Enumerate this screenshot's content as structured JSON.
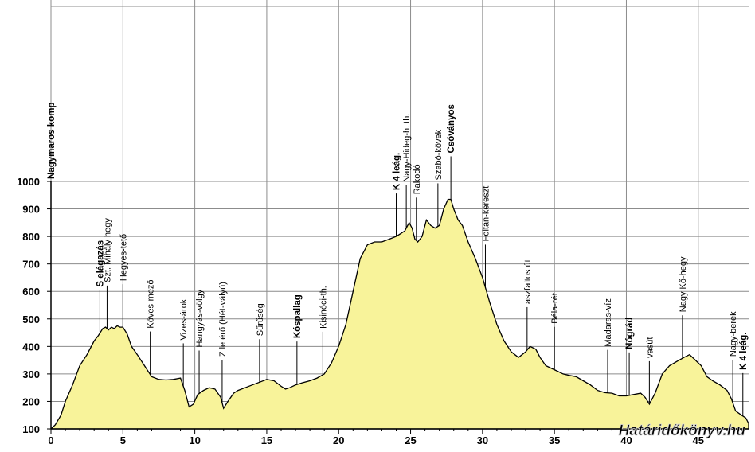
{
  "chart_data": {
    "type": "area",
    "title": "",
    "xlabel": "",
    "ylabel": "",
    "xlim": [
      0,
      48.5
    ],
    "ylim": [
      100,
      1000
    ],
    "x_ticks": [
      0,
      5,
      10,
      15,
      20,
      25,
      30,
      35,
      40,
      45
    ],
    "y_ticks": [
      100,
      200,
      300,
      400,
      500,
      600,
      700,
      800,
      900,
      1000
    ],
    "grid": true,
    "fill_color": "#f8f39a",
    "line_color": "#000000",
    "grid_color": "#8c8c8c",
    "series": [
      {
        "x": [
          0,
          0.3,
          0.7,
          1.0,
          1.5,
          2.0,
          2.5,
          3.0,
          3.3,
          3.6,
          3.8,
          4.0,
          4.2,
          4.4,
          4.6,
          4.8,
          5.0,
          5.3,
          5.6,
          6.0,
          6.5,
          7.0,
          7.5,
          8.0,
          8.5,
          9.0,
          9.3,
          9.6,
          9.9,
          10.2,
          10.6,
          11.0,
          11.4,
          11.8,
          12.0,
          12.3,
          12.7,
          13.0,
          13.5,
          14.0,
          14.5,
          15.0,
          15.5,
          16.0,
          16.3,
          16.6,
          17.0,
          17.5,
          18.0,
          18.5,
          19.0,
          19.5,
          20.0,
          20.5,
          21.0,
          21.5,
          22.0,
          22.5,
          23.0,
          23.5,
          24.0,
          24.3,
          24.6,
          24.9,
          25.1,
          25.3,
          25.5,
          25.8,
          26.1,
          26.4,
          26.7,
          27.0,
          27.3,
          27.6,
          27.8,
          28.0,
          28.3,
          28.6,
          29.0,
          29.5,
          30.0,
          30.5,
          31.0,
          31.5,
          32.0,
          32.5,
          33.0,
          33.3,
          33.7,
          34.0,
          34.4,
          34.8,
          35.2,
          35.6,
          36.0,
          36.5,
          37.0,
          37.5,
          38.0,
          38.5,
          39.0,
          39.5,
          40.0,
          40.5,
          41.0,
          41.3,
          41.6,
          42.0,
          42.5,
          43.0,
          43.5,
          44.0,
          44.4,
          44.8,
          45.2,
          45.6,
          46.0,
          46.5,
          47.0,
          47.3,
          47.6,
          48.0,
          48.3,
          48.5
        ],
        "y": [
          100,
          115,
          150,
          200,
          260,
          330,
          370,
          420,
          440,
          465,
          470,
          460,
          470,
          465,
          475,
          470,
          470,
          445,
          400,
          370,
          330,
          290,
          280,
          278,
          280,
          285,
          240,
          180,
          190,
          225,
          240,
          250,
          245,
          215,
          175,
          200,
          230,
          240,
          250,
          260,
          270,
          280,
          275,
          255,
          245,
          250,
          260,
          268,
          275,
          285,
          300,
          340,
          400,
          480,
          600,
          720,
          770,
          780,
          780,
          790,
          800,
          810,
          820,
          850,
          830,
          790,
          780,
          800,
          860,
          840,
          830,
          840,
          900,
          935,
          935,
          900,
          860,
          840,
          780,
          720,
          650,
          560,
          480,
          420,
          380,
          360,
          380,
          400,
          390,
          360,
          330,
          320,
          310,
          300,
          295,
          290,
          275,
          260,
          240,
          232,
          230,
          220,
          220,
          225,
          230,
          215,
          190,
          230,
          300,
          330,
          345,
          360,
          370,
          350,
          330,
          290,
          275,
          260,
          240,
          210,
          165,
          150,
          140,
          120
        ]
      }
    ],
    "waypoints": [
      {
        "km": 0,
        "label": "Nagymaros komp",
        "bold": true
      },
      {
        "km": 3.4,
        "label": "S elágazás",
        "bold": true
      },
      {
        "km": 3.9,
        "label": "Szt. Mihály hegy",
        "bold": false
      },
      {
        "km": 5.0,
        "label": "Hegyes-tető",
        "bold": false
      },
      {
        "km": 6.9,
        "label": "Köves-mező",
        "bold": false
      },
      {
        "km": 9.2,
        "label": "Vizes-árok",
        "bold": false
      },
      {
        "km": 10.3,
        "label": "Hangyás-völgy",
        "bold": false
      },
      {
        "km": 11.9,
        "label": "Z letérő (Hét-vályú)",
        "bold": false
      },
      {
        "km": 14.5,
        "label": "Sűrűség",
        "bold": false
      },
      {
        "km": 17.1,
        "label": "Kóspallag",
        "bold": true
      },
      {
        "km": 18.9,
        "label": "Kisinóci-th.",
        "bold": false
      },
      {
        "km": 24.0,
        "label": "K 4 leág.",
        "bold": true
      },
      {
        "km": 24.7,
        "label": "Nagy-Hideg-h. th.",
        "bold": false
      },
      {
        "km": 25.4,
        "label": "Rakodó",
        "bold": false
      },
      {
        "km": 26.9,
        "label": "Szabó-kövek",
        "bold": false
      },
      {
        "km": 27.8,
        "label": "Csóványos",
        "bold": true
      },
      {
        "km": 30.2,
        "label": "Foltán-kereszt",
        "bold": false
      },
      {
        "km": 33.1,
        "label": "aszfaltos út",
        "bold": false
      },
      {
        "km": 35.0,
        "label": "Béla-rét",
        "bold": false
      },
      {
        "km": 38.7,
        "label": "Madaras-víz",
        "bold": false
      },
      {
        "km": 40.2,
        "label": "Nógrád",
        "bold": true
      },
      {
        "km": 41.6,
        "label": "vasút",
        "bold": false
      },
      {
        "km": 43.9,
        "label": "Nagy Kő-hegy",
        "bold": false
      },
      {
        "km": 47.4,
        "label": "Nagy-berek",
        "bold": false
      },
      {
        "km": 48.1,
        "label": "K 4 leág.",
        "bold": true
      }
    ],
    "watermark": "Határidőkönyv.hu"
  }
}
